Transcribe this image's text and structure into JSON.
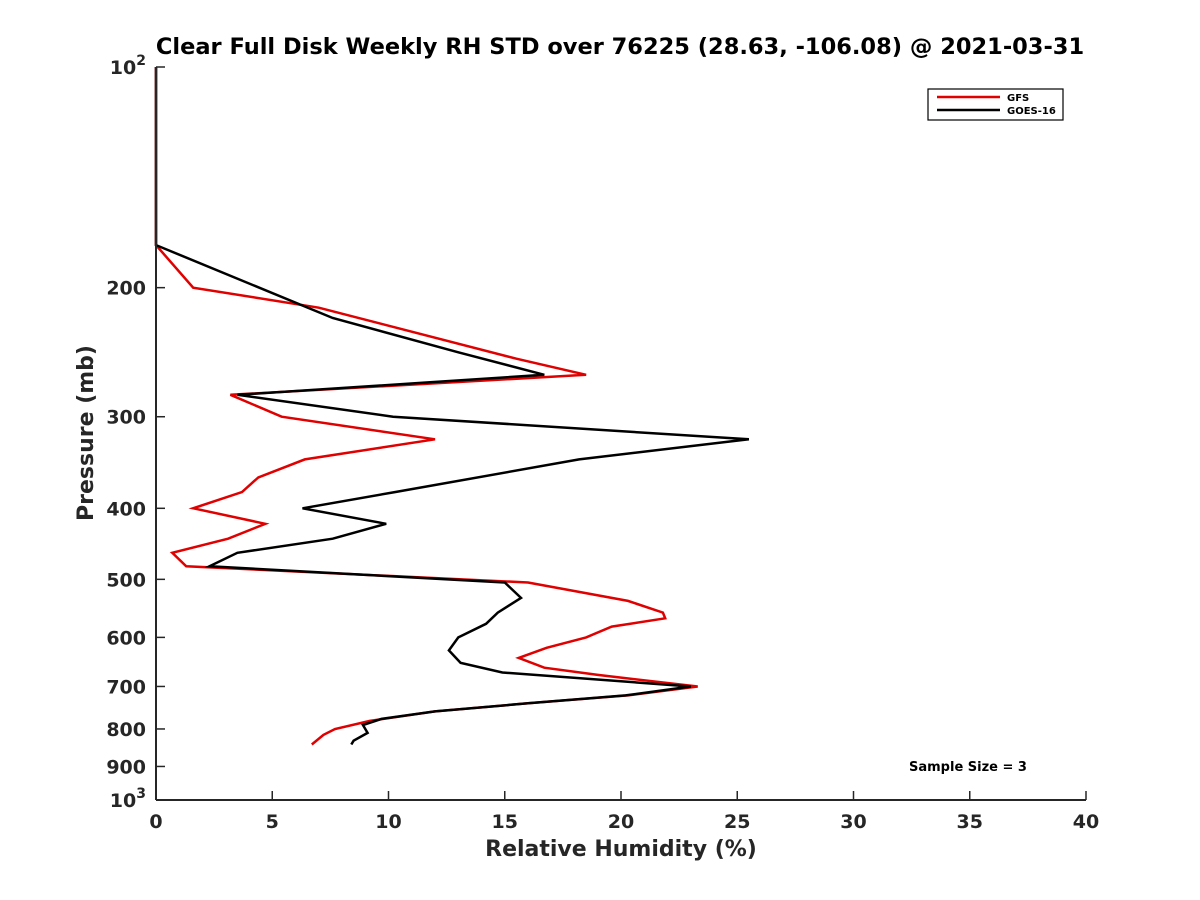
{
  "chart_data": {
    "type": "line",
    "title": "Clear Full Disk Weekly RH STD over 76225 (28.63, -106.08) @ 2021-03-31",
    "xlabel": "Relative Humidity (%)",
    "ylabel": "Pressure (mb)",
    "xlim": [
      0,
      40
    ],
    "ylim": [
      100,
      1000
    ],
    "y_scale": "log",
    "y_reversed": true,
    "x_ticks": [
      "0",
      "5",
      "10",
      "15",
      "20",
      "25",
      "30",
      "35",
      "40"
    ],
    "x_tick_values": [
      0,
      5,
      10,
      15,
      20,
      25,
      30,
      35,
      40
    ],
    "y_ticks": [
      {
        "value": 100,
        "base": "10",
        "exp": "2"
      },
      {
        "value": 200,
        "label": "200"
      },
      {
        "value": 300,
        "label": "300"
      },
      {
        "value": 400,
        "label": "400"
      },
      {
        "value": 500,
        "label": "500"
      },
      {
        "value": 600,
        "label": "600"
      },
      {
        "value": 700,
        "label": "700"
      },
      {
        "value": 800,
        "label": "800"
      },
      {
        "value": 900,
        "label": "900"
      },
      {
        "value": 1000,
        "base": "10",
        "exp": "3"
      }
    ],
    "grid": false,
    "legend_position": "top-right",
    "annotation": "Sample Size = 3",
    "series": [
      {
        "name": "GFS",
        "color": "#e00000",
        "points": [
          [
            0,
            100
          ],
          [
            0,
            175
          ],
          [
            1.6,
            200
          ],
          [
            7.0,
            213
          ],
          [
            15.5,
            250
          ],
          [
            18.5,
            263
          ],
          [
            3.2,
            280
          ],
          [
            5.4,
            300
          ],
          [
            12.0,
            322
          ],
          [
            6.4,
            343
          ],
          [
            4.4,
            363
          ],
          [
            3.7,
            380
          ],
          [
            1.6,
            400
          ],
          [
            4.7,
            420
          ],
          [
            3.1,
            440
          ],
          [
            0.7,
            460
          ],
          [
            1.3,
            480
          ],
          [
            16.0,
            505
          ],
          [
            20.3,
            535
          ],
          [
            21.8,
            555
          ],
          [
            21.9,
            565
          ],
          [
            19.6,
            580
          ],
          [
            18.5,
            600
          ],
          [
            16.8,
            620
          ],
          [
            15.6,
            640
          ],
          [
            16.7,
            660
          ],
          [
            19.0,
            675
          ],
          [
            23.3,
            700
          ],
          [
            20.3,
            720
          ],
          [
            16.0,
            738
          ],
          [
            12.0,
            757
          ],
          [
            9.2,
            780
          ],
          [
            7.7,
            800
          ],
          [
            7.2,
            815
          ],
          [
            6.7,
            840
          ]
        ]
      },
      {
        "name": "GOES-16",
        "color": "#000000",
        "points": [
          [
            0,
            100
          ],
          [
            0,
            175
          ],
          [
            3.6,
            195
          ],
          [
            7.6,
            220
          ],
          [
            13.0,
            245
          ],
          [
            16.7,
            263
          ],
          [
            3.5,
            280
          ],
          [
            10.2,
            300
          ],
          [
            25.5,
            322
          ],
          [
            18.2,
            343
          ],
          [
            10.3,
            380
          ],
          [
            6.3,
            400
          ],
          [
            9.9,
            420
          ],
          [
            7.6,
            440
          ],
          [
            3.5,
            460
          ],
          [
            2.3,
            480
          ],
          [
            15.0,
            505
          ],
          [
            15.7,
            530
          ],
          [
            14.7,
            555
          ],
          [
            14.2,
            575
          ],
          [
            13.0,
            600
          ],
          [
            12.6,
            625
          ],
          [
            13.1,
            650
          ],
          [
            14.9,
            670
          ],
          [
            23.0,
            700
          ],
          [
            20.2,
            720
          ],
          [
            16.0,
            738
          ],
          [
            12.0,
            757
          ],
          [
            9.7,
            775
          ],
          [
            8.9,
            790
          ],
          [
            9.1,
            810
          ],
          [
            8.5,
            830
          ],
          [
            8.4,
            840
          ]
        ]
      }
    ]
  }
}
